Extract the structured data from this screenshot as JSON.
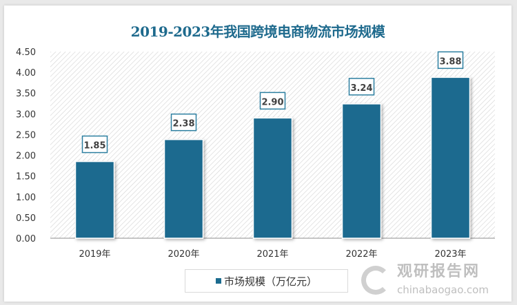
{
  "chart_data": {
    "type": "bar",
    "title": "2019-2023年我国跨境电商物流市场规模",
    "categories": [
      "2019年",
      "2020年",
      "2021年",
      "2022年",
      "2023年"
    ],
    "series": [
      {
        "name": "市场规模（万亿元）",
        "values": [
          1.85,
          2.38,
          2.9,
          3.24,
          3.88
        ],
        "labels": [
          "1.85",
          "2.38",
          "2.90",
          "3.24",
          "3.88"
        ]
      }
    ],
    "yticks": [
      "0.00",
      "0.50",
      "1.00",
      "1.50",
      "2.00",
      "2.50",
      "3.00",
      "3.50",
      "4.00",
      "4.50"
    ],
    "ylim": [
      0,
      4.5
    ],
    "xlabel": "",
    "ylabel": "",
    "legend": "bottom",
    "grid": false,
    "colors": {
      "bar": "#1b6b8f",
      "title": "#1e6a8d"
    }
  },
  "watermark": {
    "name": "观研报告网",
    "url": "chinabaogao.com"
  }
}
